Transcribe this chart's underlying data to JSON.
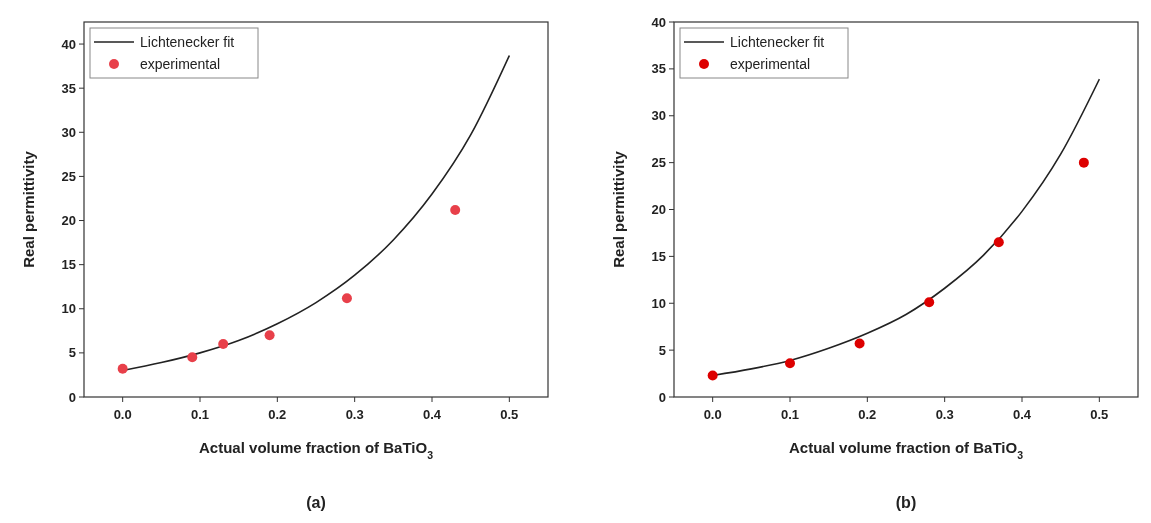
{
  "chart_data": [
    {
      "type": "scatter",
      "xlabel": "Actual volume fraction of BaTiO$_{3}$",
      "ylabel": "Real permittivity",
      "annotations": [
        "(a)"
      ],
      "xlim": [
        -0.05,
        0.55
      ],
      "ylim": [
        0,
        42.5
      ],
      "xticks": [
        {
          "value": 0,
          "label": "0.0"
        },
        0.1,
        0.2,
        0.3,
        0.4,
        0.5
      ],
      "yticks": [
        0,
        5,
        10,
        15,
        20,
        25,
        30,
        35,
        40
      ],
      "legend": "top left",
      "grid": false,
      "series": [
        {
          "name": "Lichtenecker fit",
          "type": "line",
          "color": "#222222",
          "line_style": "solid",
          "x": [
            0,
            0.05,
            0.1,
            0.15,
            0.2,
            0.25,
            0.3,
            0.35,
            0.4,
            0.45,
            0.5
          ],
          "values": [
            3.0,
            3.9,
            5.0,
            6.4,
            8.3,
            10.7,
            13.8,
            17.8,
            23.0,
            29.7,
            38.7
          ]
        },
        {
          "name": "experimental",
          "color": "#e8404a",
          "marker": "circle",
          "x": [
            0,
            0.09,
            0.13,
            0.19,
            0.29,
            0.43
          ],
          "values": [
            3.2,
            4.5,
            6.0,
            7.0,
            11.2,
            21.2
          ]
        }
      ]
    },
    {
      "type": "scatter",
      "xlabel": "Actual volume fraction of BaTiO$_{3}$",
      "ylabel": "Real permittivity",
      "annotations": [
        "(b)"
      ],
      "xlim": [
        -0.05,
        0.55
      ],
      "ylim": [
        0,
        40
      ],
      "xticks": [
        {
          "value": 0,
          "label": "0.0"
        },
        0.1,
        0.2,
        0.3,
        0.4,
        0.5
      ],
      "yticks": [
        0,
        5,
        10,
        15,
        20,
        25,
        30,
        35,
        40
      ],
      "legend": "top left",
      "grid": false,
      "series": [
        {
          "name": "Lichtenecker fit",
          "type": "line",
          "color": "#222222",
          "line_style": "solid",
          "x": [
            0,
            0.05,
            0.1,
            0.15,
            0.2,
            0.25,
            0.3,
            0.35,
            0.4,
            0.45,
            0.5
          ],
          "values": [
            2.3,
            3.0,
            3.9,
            5.2,
            6.8,
            8.8,
            11.6,
            15.1,
            19.8,
            25.9,
            33.9
          ]
        },
        {
          "name": "experimental",
          "color": "#dd0000",
          "marker": "circle",
          "x": [
            0,
            0.1,
            0.19,
            0.28,
            0.37,
            0.48
          ],
          "values": [
            2.3,
            3.6,
            5.7,
            10.1,
            16.5,
            25.0
          ]
        }
      ]
    }
  ]
}
